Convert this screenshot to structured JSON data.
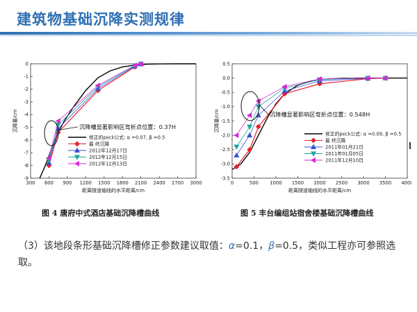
{
  "slide": {
    "title": "建筑物基础沉降实测规律",
    "body_prefix": "（3）该地段条形基础沉降槽修正参数建议取值：",
    "alpha_sym": "α",
    "alpha_val": "=0.1，",
    "beta_sym": "β",
    "beta_val": "=0.5，类似工程亦可参照选取。"
  },
  "figure1": {
    "caption": "图 4    唐府中式酒店基础沉降槽曲线",
    "annotation": "沉降槽显著影响区弯折点位置：0.37H",
    "legend": [
      "修正的peck公式: α =0.07, β =0.5",
      "最  终沉降",
      "2012年12月17日",
      "2012年12月15日",
      "2012年12月13日"
    ]
  },
  "figure2": {
    "caption": "图 5    丰台编组站宿舍楼基础沉降槽曲线",
    "annotation": "沉降槽显著影响区弯折点位置：0.548H",
    "legend": [
      "修正的peck公式: α =0.09, β =0.5",
      "最  终沉降",
      "2011年01月21日",
      "2011年01月05日",
      "2011年12月10日"
    ]
  },
  "colors": {
    "title": "#2f6fb3",
    "peck": "#000000",
    "final": "#e8212b",
    "s1": "#3b4fd8",
    "s2": "#1aa6a0",
    "s3": "#d62ad6"
  },
  "chart_data": [
    {
      "type": "line",
      "title": "",
      "xlabel": "距离隧道轴线的水平距离/cm",
      "ylabel": "沉降量/cm",
      "xlim": [
        300,
        3000
      ],
      "ylim": [
        -9,
        0
      ],
      "xticks": [
        300,
        600,
        900,
        1200,
        1500,
        1800,
        2100,
        2400,
        2700,
        3000
      ],
      "yticks": [
        0,
        -1,
        -2,
        -3,
        -4,
        -5,
        -6,
        -7,
        -8,
        -9
      ],
      "series": [
        {
          "name": "修正的peck公式: α =0.07, β =0.5",
          "color": "#000000",
          "marker": "none",
          "x": [
            450,
            550,
            650,
            750,
            850,
            1000,
            1200,
            1400,
            1600,
            1800,
            2000,
            2200,
            2400,
            2700,
            3000
          ],
          "y": [
            -9.0,
            -7.9,
            -6.6,
            -5.4,
            -4.5,
            -3.4,
            -2.1,
            -1.1,
            -0.55,
            -0.25,
            -0.1,
            -0.03,
            -0.01,
            0,
            0
          ]
        },
        {
          "name": "最  终沉降",
          "color": "#e8212b",
          "marker": "diamond",
          "x": [
            600,
            750,
            1400,
            2000,
            2100
          ],
          "y": [
            -8.0,
            -5.4,
            -2.1,
            -0.25,
            -0.02
          ]
        },
        {
          "name": "2012年12月17日",
          "color": "#3b4fd8",
          "marker": "triangle-up",
          "x": [
            600,
            750,
            1400,
            2000,
            2100
          ],
          "y": [
            -7.8,
            -5.1,
            -1.95,
            -0.2,
            -0.02
          ]
        },
        {
          "name": "2012年12月15日",
          "color": "#1aa6a0",
          "marker": "triangle-down",
          "x": [
            600,
            750,
            1400,
            2000,
            2100
          ],
          "y": [
            -7.6,
            -4.8,
            -1.8,
            -0.15,
            -0.02
          ]
        },
        {
          "name": "2012年12月13日",
          "color": "#d62ad6",
          "marker": "triangle-left",
          "x": [
            600,
            750,
            1400,
            2000,
            2100
          ],
          "y": [
            -7.4,
            -4.5,
            -1.7,
            -0.12,
            -0.02
          ]
        }
      ]
    },
    {
      "type": "line",
      "title": "",
      "xlabel": "距离隧道轴线的水平距离/cm",
      "ylabel": "沉降量/cm",
      "xlim": [
        0,
        4000
      ],
      "ylim": [
        -3.5,
        0.5
      ],
      "xticks": [
        0,
        500,
        1000,
        1500,
        2000,
        2500,
        3000,
        3500,
        4000
      ],
      "yticks": [
        0.5,
        0.0,
        -0.5,
        -1.0,
        -1.5,
        -2.0,
        -2.5,
        -3.0,
        -3.5
      ],
      "series": [
        {
          "name": "修正的peck公式: α =0.09, β =0.5",
          "color": "#000000",
          "marker": "none",
          "x": [
            0,
            200,
            400,
            600,
            800,
            1000,
            1200,
            1500,
            1800,
            2100,
            2500,
            3000,
            3500,
            4000
          ],
          "y": [
            -3.2,
            -3.0,
            -2.6,
            -2.0,
            -1.4,
            -0.9,
            -0.55,
            -0.25,
            -0.1,
            -0.04,
            -0.01,
            0,
            0,
            0
          ]
        },
        {
          "name": "最  终沉降",
          "color": "#e8212b",
          "marker": "diamond",
          "x": [
            100,
            400,
            600,
            1200,
            2000,
            3100,
            3500
          ],
          "y": [
            -3.1,
            -2.5,
            -1.7,
            -0.55,
            -0.2,
            -0.02,
            0
          ]
        },
        {
          "name": "2011年01月21日",
          "color": "#3b4fd8",
          "marker": "triangle-up",
          "x": [
            100,
            400,
            600,
            1200,
            2000,
            3100,
            3500
          ],
          "y": [
            -2.7,
            -2.0,
            -1.3,
            -0.45,
            -0.1,
            -0.01,
            0
          ]
        },
        {
          "name": "2011年01月05日",
          "color": "#1aa6a0",
          "marker": "triangle-down",
          "x": [
            100,
            400,
            600,
            1200,
            2000,
            3100,
            3500
          ],
          "y": [
            -2.4,
            -1.7,
            -1.0,
            -0.35,
            -0.05,
            0,
            0
          ]
        },
        {
          "name": "2011年12月10日",
          "color": "#d62ad6",
          "marker": "triangle-left",
          "x": [
            100,
            400,
            600,
            1200,
            2000,
            3100,
            3500
          ],
          "y": [
            -2.0,
            -1.3,
            -0.8,
            -0.3,
            -0.03,
            0,
            0
          ]
        }
      ]
    }
  ]
}
